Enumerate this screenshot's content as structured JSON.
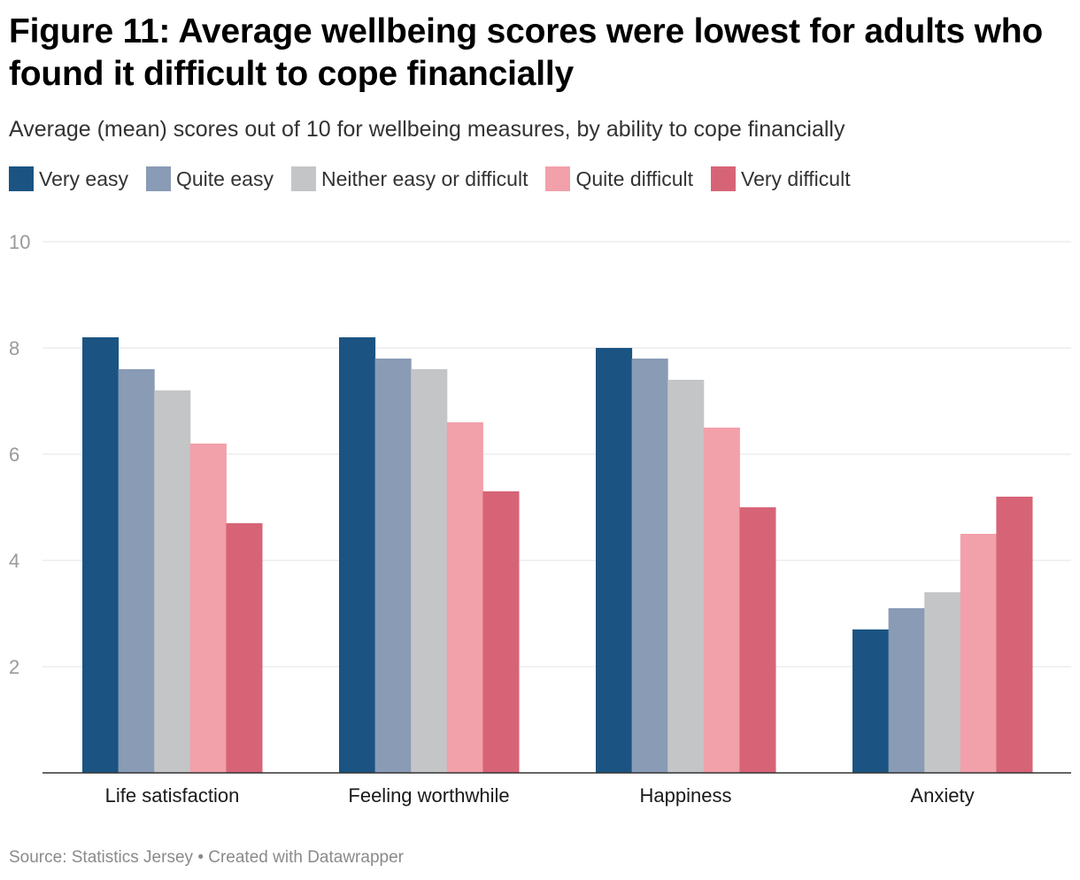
{
  "header": {
    "title": "Figure 11: Average wellbeing scores were lowest for adults who found it difficult to cope financially",
    "subtitle": "Average (mean) scores out of 10 for wellbeing measures, by ability to cope financially"
  },
  "footer": {
    "source_label": "Source: Statistics Jersey",
    "separator": "•",
    "created_with": "Created with Datawrapper"
  },
  "chart_data": {
    "type": "bar",
    "title": "Figure 11: Average wellbeing scores were lowest for adults who found it difficult to cope financially",
    "subtitle": "Average (mean) scores out of 10 for wellbeing measures, by ability to cope financially",
    "xlabel": "",
    "ylabel": "",
    "ylim": [
      0,
      10
    ],
    "yticks": [
      2,
      4,
      6,
      8,
      10
    ],
    "grid": true,
    "legend_position": "top-left",
    "categories": [
      "Life satisfaction",
      "Feeling worthwhile",
      "Happiness",
      "Anxiety"
    ],
    "series": [
      {
        "name": "Very easy",
        "color": "#1b5482",
        "values": [
          8.2,
          8.2,
          8.0,
          2.7
        ]
      },
      {
        "name": "Quite easy",
        "color": "#899bb5",
        "values": [
          7.6,
          7.8,
          7.8,
          3.1
        ]
      },
      {
        "name": "Neither easy or difficult",
        "color": "#c4c5c7",
        "values": [
          7.2,
          7.6,
          7.4,
          3.4
        ]
      },
      {
        "name": "Quite difficult",
        "color": "#f2a0aa",
        "values": [
          6.2,
          6.6,
          6.5,
          4.5
        ]
      },
      {
        "name": "Very difficult",
        "color": "#d76476",
        "values": [
          4.7,
          5.3,
          5.0,
          5.2
        ]
      }
    ]
  }
}
